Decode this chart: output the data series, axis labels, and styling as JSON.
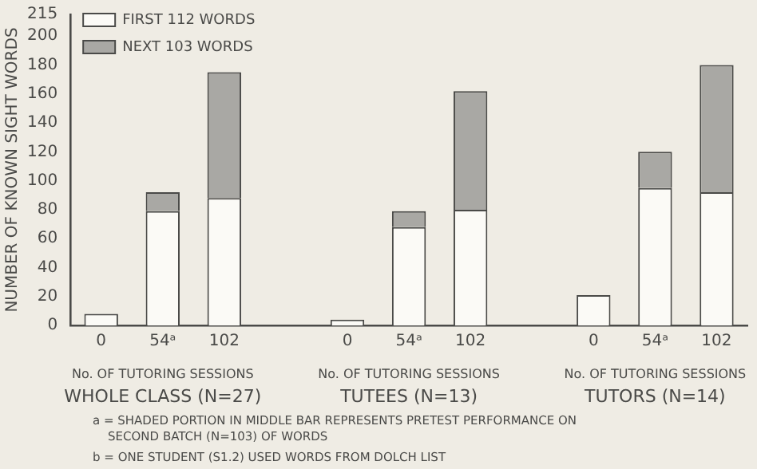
{
  "chart_data": {
    "type": "bar",
    "stacked": true,
    "ylabel": "NUMBER OF KNOWN SIGHT WORDS",
    "categories": [
      "0",
      "54ᵃ",
      "102",
      null,
      "0",
      "54ᵃ",
      "102",
      null,
      "0",
      "54ᵃ",
      "102"
    ],
    "series": [
      {
        "name": "FIRST 112 WORDS",
        "color": "#fbfaf6",
        "values": [
          8,
          79,
          88,
          null,
          4,
          68,
          80,
          null,
          21,
          95,
          92
        ]
      },
      {
        "name": "NEXT 103 WORDS",
        "color": "#a9a8a4",
        "values": [
          null,
          13,
          87,
          null,
          null,
          11,
          82,
          null,
          null,
          25,
          88
        ]
      }
    ],
    "ylim": [
      0,
      215
    ],
    "yticks": [
      0,
      20,
      40,
      60,
      80,
      100,
      120,
      140,
      160,
      180,
      200,
      215
    ],
    "grid": false,
    "legend": "top left",
    "annotations": [
      "No. OF TUTORING SESSIONS",
      "No. OF TUTORING SESSIONS",
      "No. OF TUTORING SESSIONS",
      "WHOLE CLASS (N=27)",
      "TUTEES (N=13)",
      "TUTORS (N=14)",
      "a = SHADED PORTION IN MIDDLE BAR REPRESENTS PRETEST PERFORMANCE ON SECOND BATCH (N=103) OF WORDS",
      "b = ONE STUDENT (S1.2) USED WORDS FROM DOLCH LIST"
    ]
  }
}
